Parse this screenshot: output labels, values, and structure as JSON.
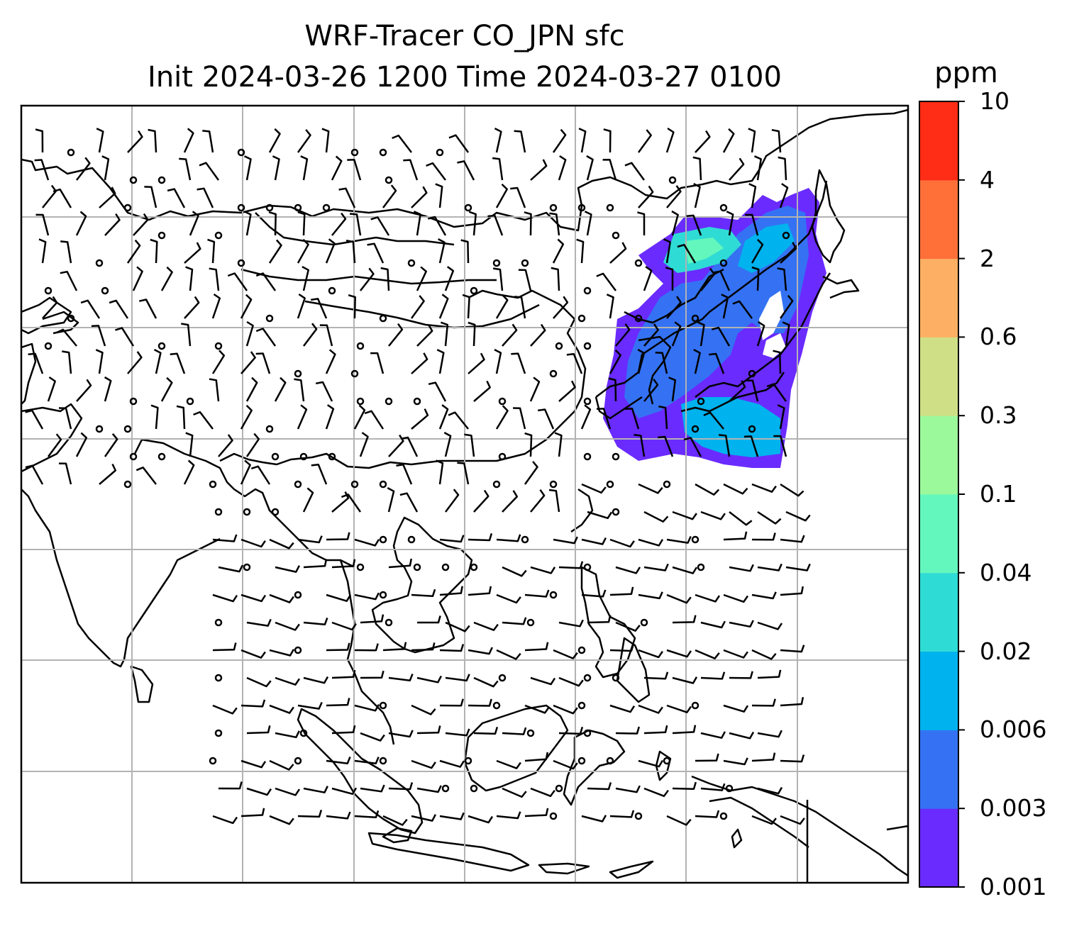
{
  "title": {
    "line1": "WRF-Tracer CO_JPN sfc",
    "line2": "Init 2024-03-26 1200 Time 2024-03-27 0100"
  },
  "colorbar": {
    "unit": "ppm",
    "levels": [
      "0.001",
      "0.003",
      "0.006",
      "0.02",
      "0.04",
      "0.1",
      "0.3",
      "0.6",
      "2",
      "4",
      "10"
    ],
    "colors": [
      "#6a2bff",
      "#3472f3",
      "#00b2ed",
      "#2fdbd5",
      "#63f7bd",
      "#9bf99c",
      "#cfdf86",
      "#fdb063",
      "#ff7039",
      "#ff2c16"
    ]
  },
  "map": {
    "field": "CO_JPN tracer concentration",
    "plume_region": "Japan / East China Sea / Korea / NE China",
    "wind_barbs": "surface wind barbs on regular grid",
    "gridlines": true
  }
}
